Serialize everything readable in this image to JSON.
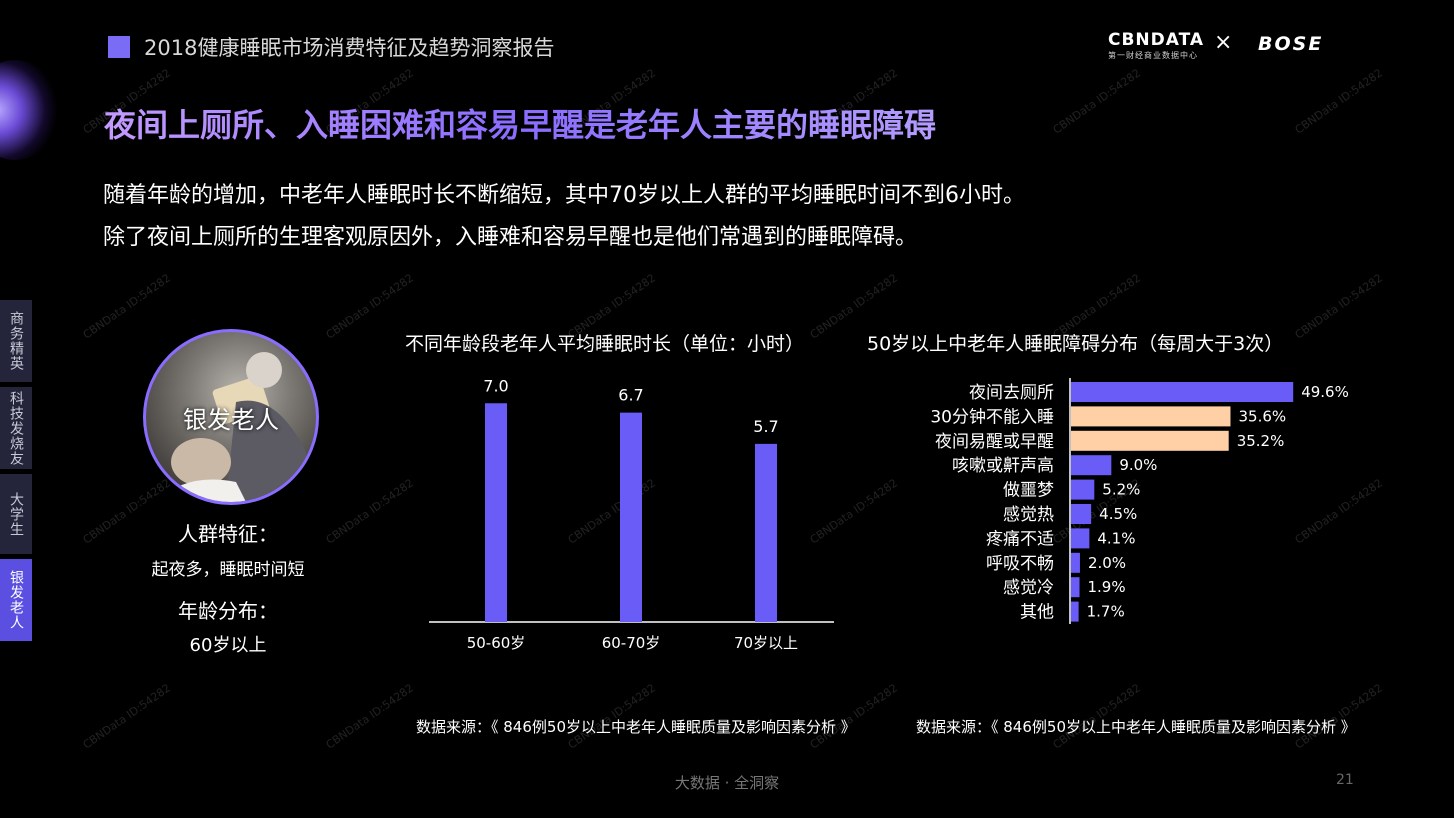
{
  "header": {
    "report_title": "2018健康睡眠市场消费特征及趋势洞察报告",
    "logo_cbn": "CBNDATA",
    "logo_cbn_sub": "第一财经商业数据中心",
    "logo_x": "×",
    "logo_bose": "BOSE",
    "accent": "#7b6cf6"
  },
  "main_title": "夜间上厕所、入睡困难和容易早醒是老年人主要的睡眠障碍",
  "subtitle": [
    "随着年龄的增加，中老年人睡眠时长不断缩短，其中70岁以上人群的平均睡眠时间不到6小时。",
    "除了夜间上厕所的生理客观原因外，入睡难和容易早醒也是他们常遇到的睡眠障碍。"
  ],
  "sidebar": {
    "items": [
      {
        "label": "商务精英"
      },
      {
        "label": "科技发烧友"
      },
      {
        "label": "大学生"
      },
      {
        "label": "银发老人",
        "active": true
      }
    ]
  },
  "persona": {
    "name": "银发老人",
    "feature_label": "人群特征：",
    "feature_value": "起夜多，睡眠时间短",
    "age_label": "年龄分布：",
    "age_value": "60岁以上"
  },
  "watermark": "CBNData ID:54282",
  "chart_data": [
    {
      "type": "bar",
      "title": "不同年龄段老年人平均睡眠时长（单位：小时）",
      "categories": [
        "50-60岁",
        "60-70岁",
        "70岁以上"
      ],
      "values": [
        7.0,
        6.7,
        5.7
      ],
      "value_labels": [
        "7.0",
        "6.7",
        "5.7"
      ],
      "ylim": [
        0,
        8
      ],
      "color": "#6a5cf6",
      "source": "数据来源：《 846例50岁以上中老年人睡眠质量及影响因素分析 》"
    },
    {
      "type": "bar",
      "orientation": "horizontal",
      "title": "50岁以上中老年人睡眠障碍分布（每周大于3次）",
      "categories": [
        "夜间去厕所",
        "30分钟不能入睡",
        "夜间易醒或早醒",
        "咳嗽或鼾声高",
        "做噩梦",
        "感觉热",
        "疼痛不适",
        "呼吸不畅",
        "感觉冷",
        "其他"
      ],
      "values": [
        49.6,
        35.6,
        35.2,
        9.0,
        5.2,
        4.5,
        4.1,
        2.0,
        1.9,
        1.7
      ],
      "value_labels": [
        "49.6%",
        "35.6%",
        "35.2%",
        "9.0%",
        "5.2%",
        "4.5%",
        "4.1%",
        "2.0%",
        "1.9%",
        "1.7%"
      ],
      "xlim": [
        0,
        50
      ],
      "color": "#6a5cf6",
      "highlight_color": "#ffd0a6",
      "highlight_indices": [
        1,
        2
      ],
      "source": "数据来源：《 846例50岁以上中老年人睡眠质量及影响因素分析 》"
    }
  ],
  "footer": {
    "text": "大数据 · 全洞察",
    "page": "21"
  }
}
